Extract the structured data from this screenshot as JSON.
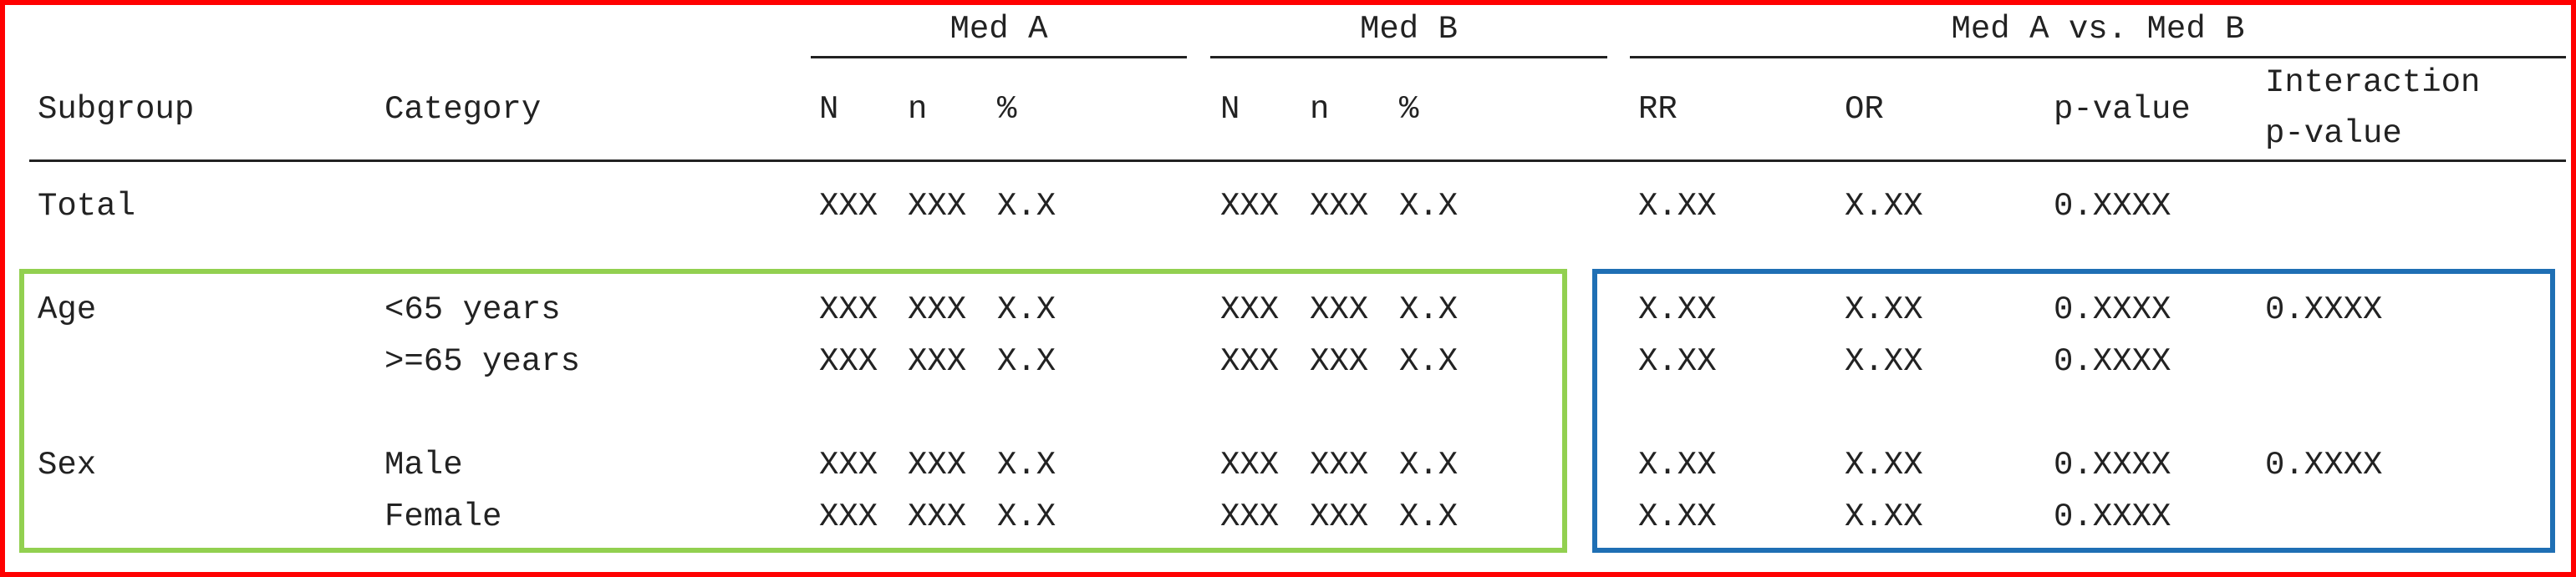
{
  "colors": {
    "frame": "#ff0000",
    "left_box": "#92d050",
    "right_box": "#1f6fb4",
    "text": "#222222"
  },
  "header": {
    "group_labels": {
      "med_a": "Med A",
      "med_b": "Med B",
      "comparison": "Med A vs. Med B"
    },
    "columns": {
      "subgroup": "Subgroup",
      "category": "Category",
      "a_N": "N",
      "a_n": "n",
      "a_pct": "%",
      "b_N": "N",
      "b_n": "n",
      "b_pct": "%",
      "rr": "RR",
      "or": "OR",
      "pvalue": "p-value",
      "interaction_line1": "Interaction",
      "interaction_line2": "p-value"
    }
  },
  "rows": [
    {
      "subgroup": "Total",
      "category": "",
      "a_N": "XXX",
      "a_n": "XXX",
      "a_pct": "X.X",
      "b_N": "XXX",
      "b_n": "XXX",
      "b_pct": "X.X",
      "rr": "X.XX",
      "or": "X.XX",
      "p": "0.XXXX",
      "interaction": ""
    },
    {
      "subgroup": "Age",
      "category": "<65 years",
      "a_N": "XXX",
      "a_n": "XXX",
      "a_pct": "X.X",
      "b_N": "XXX",
      "b_n": "XXX",
      "b_pct": "X.X",
      "rr": "X.XX",
      "or": "X.XX",
      "p": "0.XXXX",
      "interaction": "0.XXXX"
    },
    {
      "subgroup": "",
      "category": ">=65 years",
      "a_N": "XXX",
      "a_n": "XXX",
      "a_pct": "X.X",
      "b_N": "XXX",
      "b_n": "XXX",
      "b_pct": "X.X",
      "rr": "X.XX",
      "or": "X.XX",
      "p": "0.XXXX",
      "interaction": ""
    },
    {
      "subgroup": "Sex",
      "category": "Male",
      "a_N": "XXX",
      "a_n": "XXX",
      "a_pct": "X.X",
      "b_N": "XXX",
      "b_n": "XXX",
      "b_pct": "X.X",
      "rr": "X.XX",
      "or": "X.XX",
      "p": "0.XXXX",
      "interaction": "0.XXXX"
    },
    {
      "subgroup": "",
      "category": "Female",
      "a_N": "XXX",
      "a_n": "XXX",
      "a_pct": "X.X",
      "b_N": "XXX",
      "b_n": "XXX",
      "b_pct": "X.X",
      "rr": "X.XX",
      "or": "X.XX",
      "p": "0.XXXX",
      "interaction": ""
    }
  ]
}
